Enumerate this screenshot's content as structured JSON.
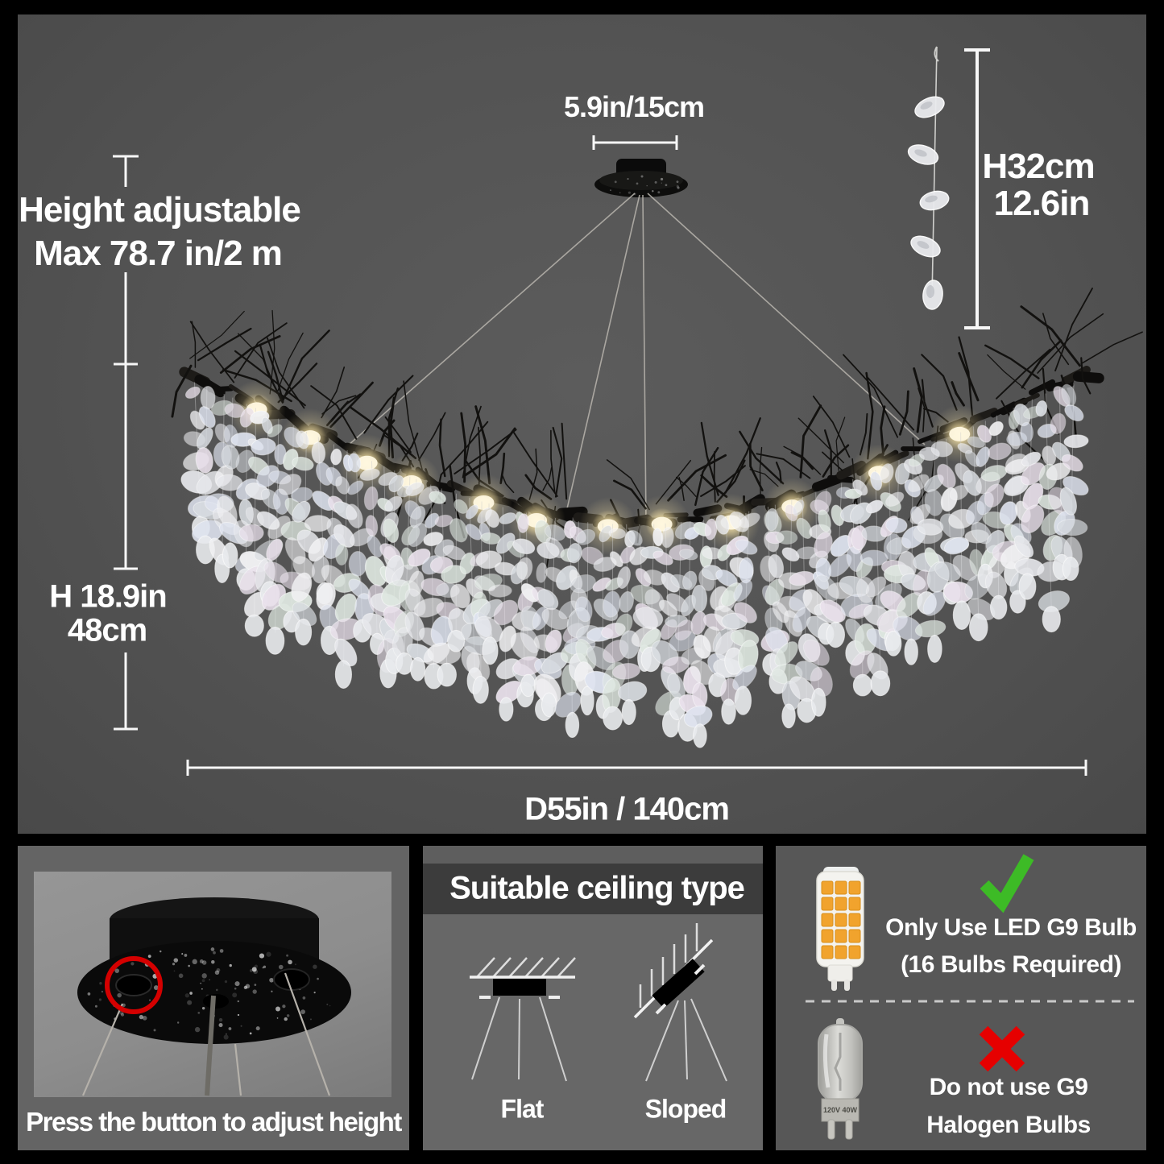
{
  "colors": {
    "background": "#000000",
    "panel_gray": "#535353",
    "dimension_white": "#ffffff",
    "check_green": "#3dbb26",
    "cross_red": "#e60000",
    "annotation_red": "#d40000",
    "glow_warm": "#fff3c4"
  },
  "dimensions": {
    "canopy_width": "5.9in/15cm",
    "height_adjustable_line1": "Height adjustable",
    "height_adjustable_line2": "Max 78.7 in/2 m",
    "fixture_height_line1": "H 18.9in",
    "fixture_height_line2": "48cm",
    "strand_height_line1": "H32cm",
    "strand_height_line2": "12.6in",
    "diameter": "D55in / 140cm"
  },
  "panels": {
    "adjust": {
      "caption": "Press the button to adjust height"
    },
    "ceiling": {
      "title": "Suitable ceiling type",
      "flat_label": "Flat",
      "sloped_label": "Sloped"
    },
    "bulbs": {
      "led_line1": "Only Use LED G9 Bulb",
      "led_line2": "(16 Bulbs Required)",
      "halogen_line1": "Do not use G9",
      "halogen_line2": "Halogen Bulbs",
      "halogen_marking": "120V 40W"
    }
  }
}
